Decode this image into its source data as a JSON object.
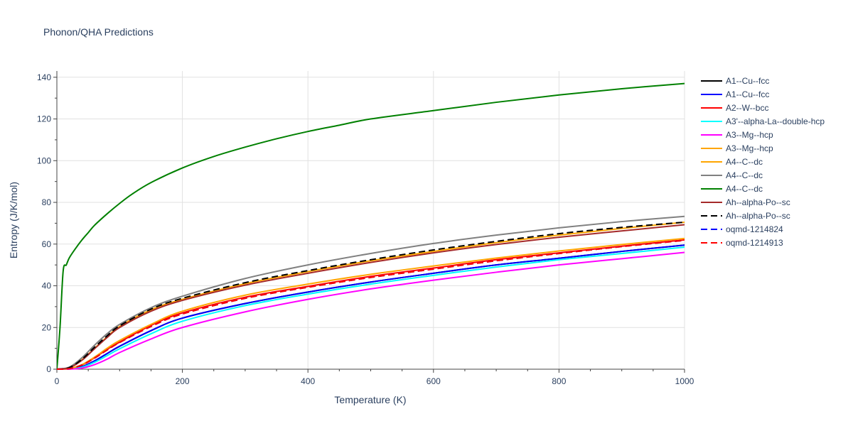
{
  "chart_data": {
    "type": "line",
    "title": "Phonon/QHA Predictions",
    "xlabel": "Temperature (K)",
    "ylabel": "Entropy (J/K/mol)",
    "xlim": [
      0,
      1000
    ],
    "ylim": [
      0,
      143
    ],
    "xticks": [
      0,
      200,
      400,
      600,
      800,
      1000
    ],
    "yticks": [
      0,
      20,
      40,
      60,
      80,
      100,
      120,
      140
    ],
    "grid": true,
    "legend_position": "right",
    "series": [
      {
        "name": "A1--Cu--fcc",
        "color": "#000000",
        "dash": "solid",
        "x": [
          0,
          20,
          40,
          60,
          80,
          100,
          150,
          200,
          300,
          400,
          500,
          600,
          700,
          800,
          900,
          1000
        ],
        "y": [
          0,
          0.1,
          1.2,
          4,
          7.5,
          11,
          18.5,
          24.5,
          31.5,
          37,
          41.8,
          46,
          50,
          53.2,
          56.5,
          59.5
        ]
      },
      {
        "name": "A1--Cu--fcc",
        "color": "#0000ff",
        "dash": "solid",
        "x": [
          0,
          20,
          40,
          60,
          80,
          100,
          150,
          200,
          300,
          400,
          500,
          600,
          700,
          800,
          900,
          1000
        ],
        "y": [
          0,
          0.1,
          1.2,
          4,
          7.5,
          11,
          18.5,
          24.5,
          31.5,
          37,
          41.8,
          46,
          50,
          53.2,
          56.5,
          59.5
        ]
      },
      {
        "name": "A2--W--bcc",
        "color": "#ff0000",
        "dash": "solid",
        "x": [
          0,
          20,
          40,
          60,
          80,
          100,
          150,
          200,
          300,
          400,
          500,
          600,
          700,
          800,
          900,
          1000
        ],
        "y": [
          0,
          0.3,
          2,
          5.5,
          9.5,
          13,
          21,
          27,
          34.5,
          39.7,
          44.5,
          48.5,
          52.5,
          55.8,
          59,
          62
        ]
      },
      {
        "name": "A3'--alpha-La--double-hcp",
        "color": "#00ffff",
        "dash": "solid",
        "x": [
          0,
          20,
          40,
          60,
          80,
          100,
          150,
          200,
          300,
          400,
          500,
          600,
          700,
          800,
          900,
          1000
        ],
        "y": [
          0,
          0.1,
          0.9,
          3.3,
          6.5,
          9.8,
          17,
          23,
          30.5,
          36,
          40.8,
          45,
          49,
          52.5,
          55.5,
          58.5
        ]
      },
      {
        "name": "A3--Mg--hcp",
        "color": "#ff00ff",
        "dash": "solid",
        "x": [
          0,
          20,
          40,
          60,
          80,
          100,
          150,
          200,
          300,
          400,
          500,
          600,
          700,
          800,
          900,
          1000
        ],
        "y": [
          0,
          0.05,
          0.5,
          2.2,
          4.8,
          8,
          14.5,
          20,
          27.5,
          33.5,
          38.5,
          42.7,
          46.5,
          50,
          53,
          56
        ]
      },
      {
        "name": "A3--Mg--hcp",
        "color": "#ffa500",
        "dash": "solid",
        "x": [
          0,
          20,
          40,
          60,
          80,
          100,
          150,
          200,
          300,
          400,
          500,
          600,
          700,
          800,
          900,
          1000
        ],
        "y": [
          0,
          0.3,
          2.2,
          5.8,
          10,
          13.8,
          21.5,
          27.8,
          35.5,
          40.8,
          45.5,
          49.5,
          53.3,
          56.7,
          59.8,
          62.7
        ]
      },
      {
        "name": "A4--C--dc",
        "color": "#ffa500",
        "dash": "solid",
        "x": [
          0,
          20,
          40,
          60,
          80,
          100,
          150,
          200,
          300,
          400,
          500,
          600,
          700,
          800,
          900,
          1000
        ],
        "y": [
          0,
          0.8,
          4.5,
          10,
          15.5,
          20.5,
          28.5,
          33.5,
          41,
          46.8,
          52,
          56.5,
          60.7,
          64.3,
          67.5,
          70.5
        ]
      },
      {
        "name": "A4--C--dc",
        "color": "#808080",
        "dash": "solid",
        "x": [
          0,
          20,
          40,
          60,
          80,
          100,
          150,
          200,
          300,
          400,
          500,
          600,
          700,
          800,
          900,
          1000
        ],
        "y": [
          0,
          1,
          5.5,
          11.5,
          17,
          21.5,
          29.5,
          35,
          43.5,
          50,
          55.5,
          60.3,
          64.3,
          67.8,
          70.8,
          73.3
        ]
      },
      {
        "name": "A4--C--dc",
        "color": "#008000",
        "dash": "solid",
        "x": [
          0,
          5,
          10,
          15,
          20,
          30,
          40,
          50,
          60,
          80,
          100,
          120,
          150,
          200,
          250,
          300,
          350,
          400,
          450,
          500,
          600,
          700,
          800,
          900,
          1000
        ],
        "y": [
          0,
          20,
          47,
          50,
          53.5,
          58,
          62,
          65.5,
          69,
          74.5,
          79.5,
          84,
          89.5,
          96.5,
          102,
          106.5,
          110.5,
          114,
          117,
          120,
          124,
          128,
          131.5,
          134.5,
          137
        ]
      },
      {
        "name": "Ah--alpha-Po--sc",
        "color": "#a52a2a",
        "dash": "solid",
        "x": [
          0,
          20,
          40,
          60,
          80,
          100,
          150,
          200,
          300,
          400,
          500,
          600,
          700,
          800,
          900,
          1000
        ],
        "y": [
          0,
          0.7,
          4.3,
          9.8,
          15.2,
          20,
          27.8,
          33,
          40.3,
          46,
          51.2,
          55.8,
          59.8,
          63.3,
          66.3,
          69.3
        ]
      },
      {
        "name": "Ah--alpha-Po--sc",
        "color": "#000000",
        "dash": "dash",
        "x": [
          0,
          20,
          40,
          60,
          80,
          100,
          150,
          200,
          300,
          400,
          500,
          600,
          700,
          800,
          900,
          1000
        ],
        "y": [
          0,
          0.8,
          4.8,
          10.5,
          16,
          20.8,
          28.8,
          34,
          41.5,
          47.3,
          52.5,
          57.2,
          61.3,
          65,
          68,
          70.5
        ]
      },
      {
        "name": "oqmd-1214824",
        "color": "#0000ff",
        "dash": "dash",
        "x": [
          0,
          20,
          40,
          60,
          80,
          100,
          150,
          200,
          300,
          400,
          500,
          600,
          700,
          800,
          900,
          1000
        ],
        "y": [
          0,
          0.3,
          2,
          5.3,
          9.2,
          12.8,
          20.5,
          26.5,
          34,
          39.3,
          44,
          48,
          52,
          55.5,
          58.8,
          61.8
        ]
      },
      {
        "name": "oqmd-1214913",
        "color": "#ff0000",
        "dash": "dash",
        "x": [
          0,
          20,
          40,
          60,
          80,
          100,
          150,
          200,
          300,
          400,
          500,
          600,
          700,
          800,
          900,
          1000
        ],
        "y": [
          0,
          0.3,
          2,
          5.3,
          9.2,
          12.8,
          20.5,
          26.5,
          34,
          39.3,
          44,
          48,
          52,
          55.5,
          58.8,
          61.8
        ]
      }
    ]
  }
}
